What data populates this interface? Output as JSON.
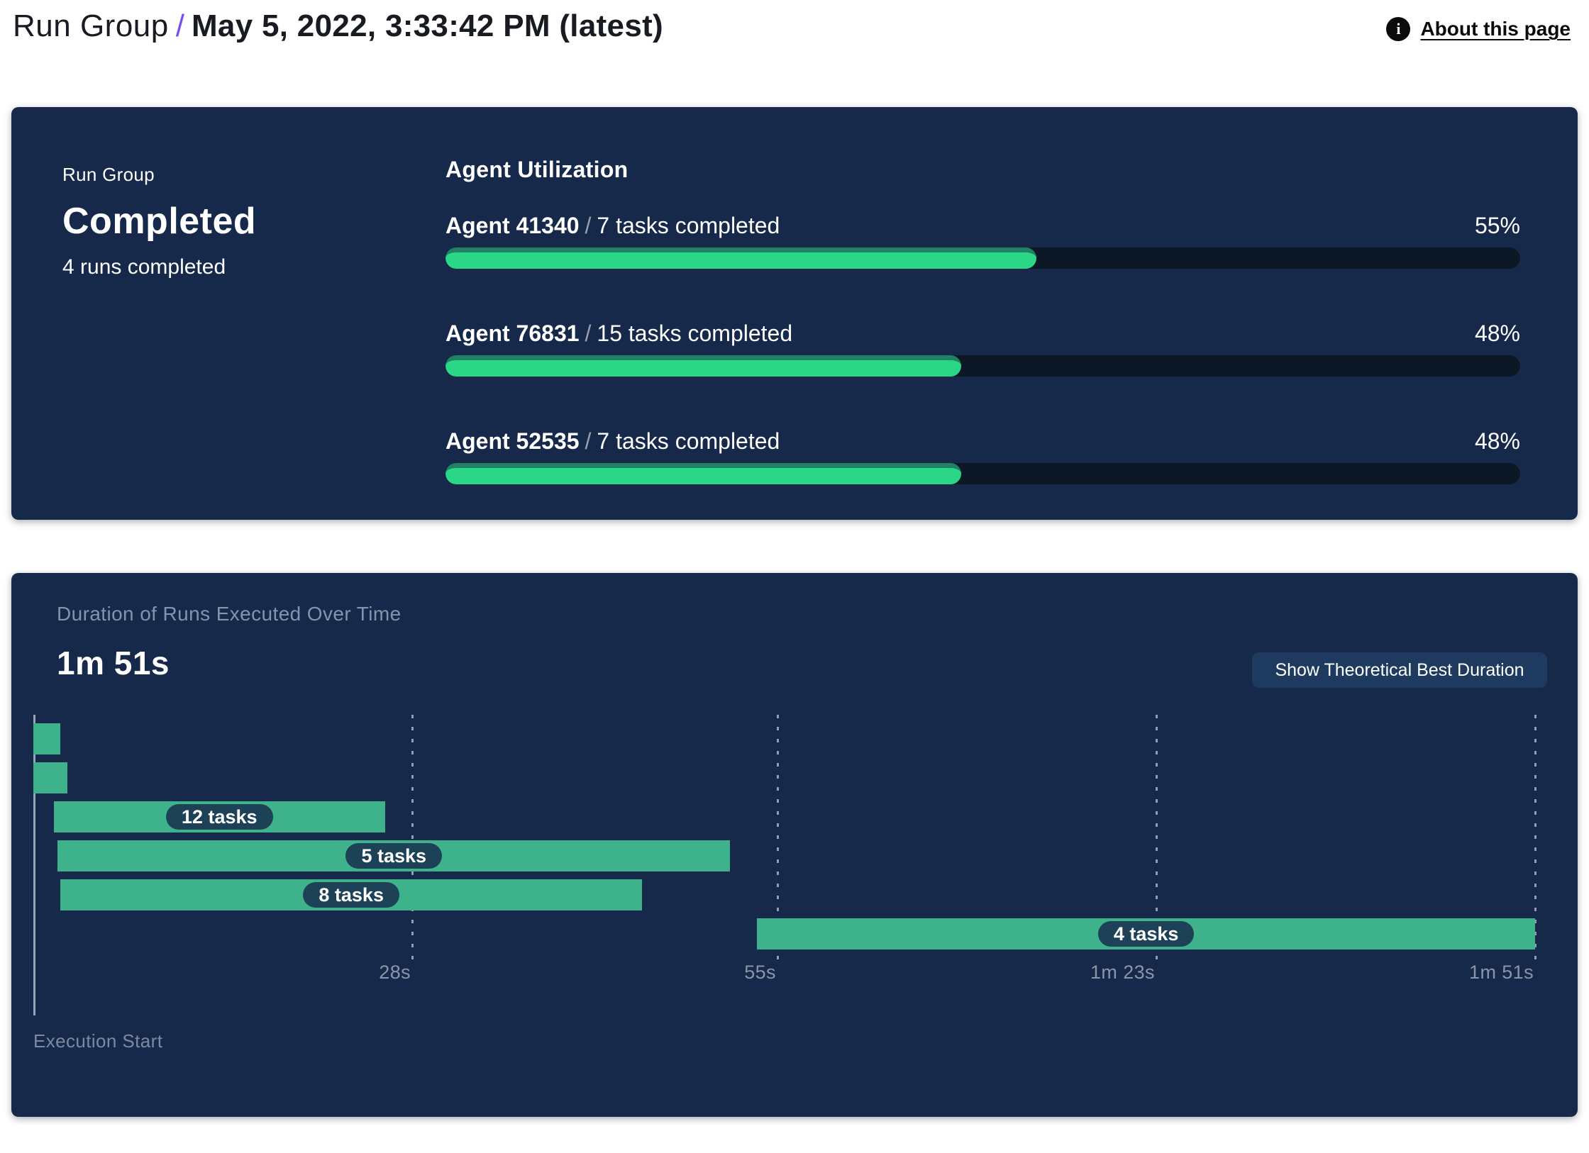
{
  "header": {
    "breadcrumb": "Run Group",
    "separator": "/",
    "page_title": "May 5, 2022, 3:33:42 PM (latest)",
    "about": {
      "label": "About this page",
      "icon_glyph": "i"
    }
  },
  "colors": {
    "card_bg": "#17294a",
    "progress_green": "#2bd687",
    "progress_green_rim": "#1f8260",
    "progress_track": "#0d1827",
    "gantt_green": "#3eb28b",
    "pill_bg": "#1d4157",
    "button_bg": "#1e3a5f",
    "accent_purple": "#7a4ff2",
    "muted_text": "#8593ab"
  },
  "status_panel": {
    "label": "Run Group",
    "status": "Completed",
    "summary": "4 runs completed"
  },
  "agent_utilization": {
    "title": "Agent Utilization",
    "separator": "/",
    "agents": [
      {
        "name": "Agent 41340",
        "tasks": "7 tasks completed",
        "percent_label": "55%",
        "percent": 55
      },
      {
        "name": "Agent 76831",
        "tasks": "15 tasks completed",
        "percent_label": "48%",
        "percent": 48
      },
      {
        "name": "Agent 52535",
        "tasks": "7 tasks completed",
        "percent_label": "48%",
        "percent": 48
      }
    ]
  },
  "duration_panel": {
    "subtitle": "Duration of Runs Executed Over Time",
    "total_duration": "1m 51s",
    "button_label": "Show Theoretical Best Duration",
    "axis_origin_label": "Execution Start",
    "chart_data": {
      "type": "gantt",
      "x_unit": "seconds",
      "xlim": [
        0,
        111
      ],
      "grid": true,
      "ticks": [
        {
          "label": "28s",
          "seconds": 28
        },
        {
          "label": "55s",
          "seconds": 55
        },
        {
          "label": "1m 23s",
          "seconds": 83
        },
        {
          "label": "1m 51s",
          "seconds": 111
        }
      ],
      "runs": [
        {
          "start": 0,
          "end": 2,
          "label": ""
        },
        {
          "start": 0,
          "end": 2.5,
          "label": ""
        },
        {
          "start": 1.5,
          "end": 26,
          "label": "12 tasks"
        },
        {
          "start": 1.8,
          "end": 51.5,
          "label": "5 tasks"
        },
        {
          "start": 2,
          "end": 45,
          "label": "8 tasks"
        },
        {
          "start": 53.5,
          "end": 111,
          "label": "4 tasks"
        }
      ]
    }
  }
}
